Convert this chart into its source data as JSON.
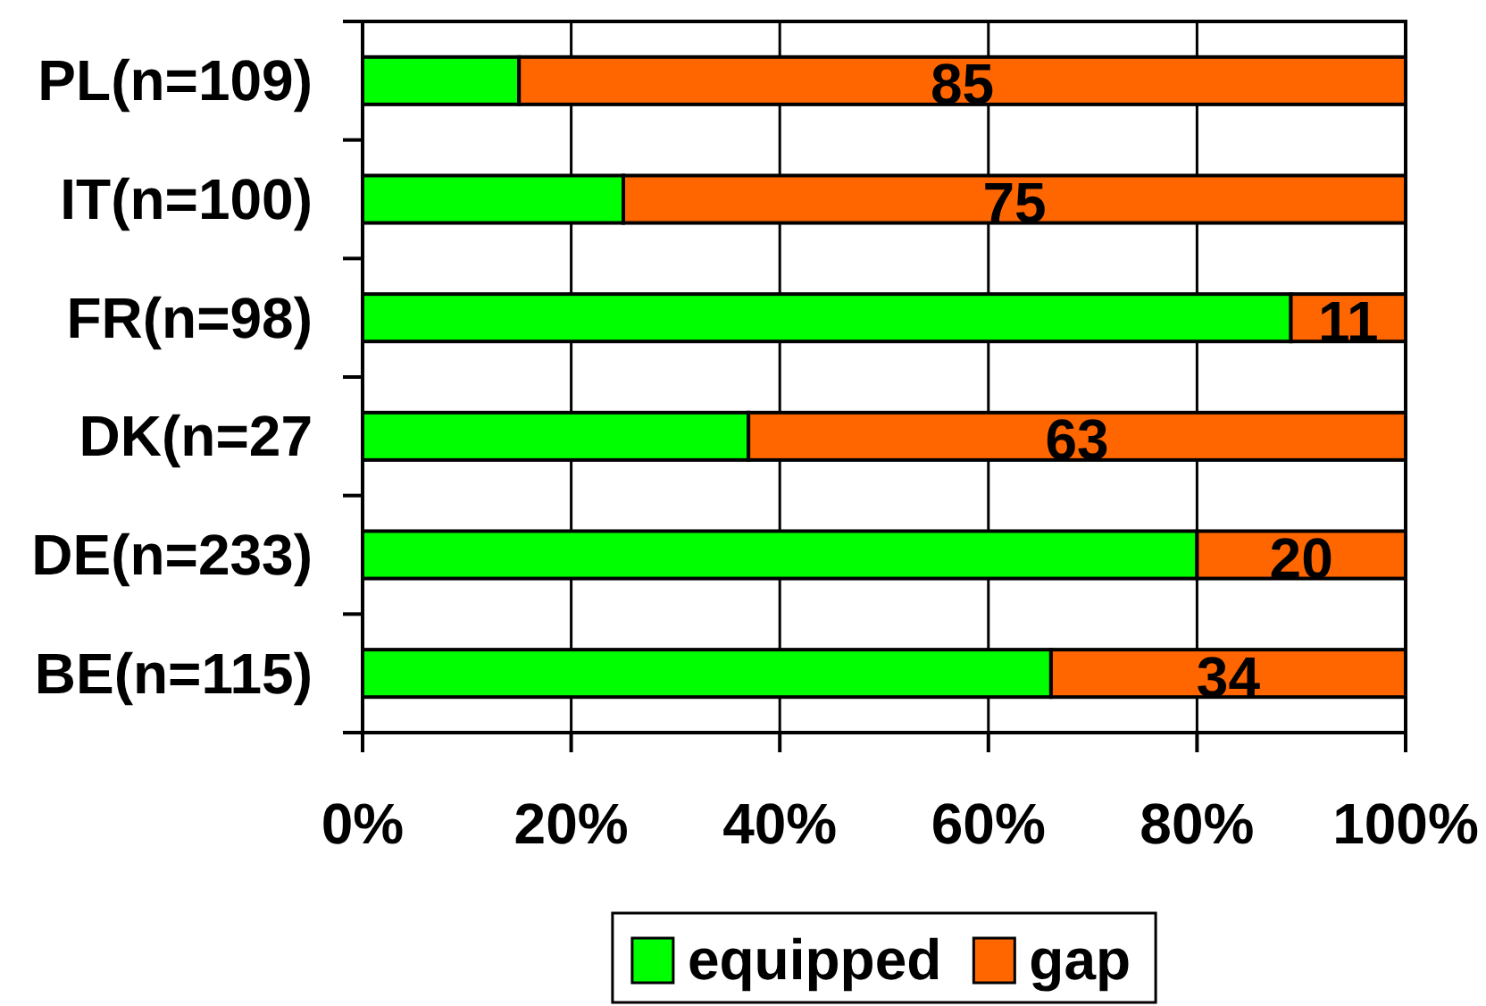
{
  "chart_data": {
    "type": "bar",
    "orientation": "horizontal",
    "stacked": true,
    "categories": [
      "PL(n=109)",
      "IT(n=100)",
      "FR(n=98)",
      "DK(n=27",
      "DE(n=233)",
      "BE(n=115)"
    ],
    "series": [
      {
        "name": "equipped",
        "color": "#00ff00",
        "values": [
          15,
          25,
          89,
          37,
          80,
          66
        ]
      },
      {
        "name": "gap",
        "color": "#ff6600",
        "values": [
          85,
          75,
          11,
          63,
          20,
          34
        ],
        "value_labels": [
          "85",
          "75",
          "11",
          "63",
          "20",
          "34"
        ]
      }
    ],
    "xlim": [
      0,
      100
    ],
    "xticks": [
      {
        "value": 0,
        "label": "0%"
      },
      {
        "value": 20,
        "label": "20%"
      },
      {
        "value": 40,
        "label": "40%"
      },
      {
        "value": 60,
        "label": "60%"
      },
      {
        "value": 80,
        "label": "80%"
      },
      {
        "value": 100,
        "label": "100%"
      }
    ],
    "grid": "x",
    "legend": "bottom"
  }
}
